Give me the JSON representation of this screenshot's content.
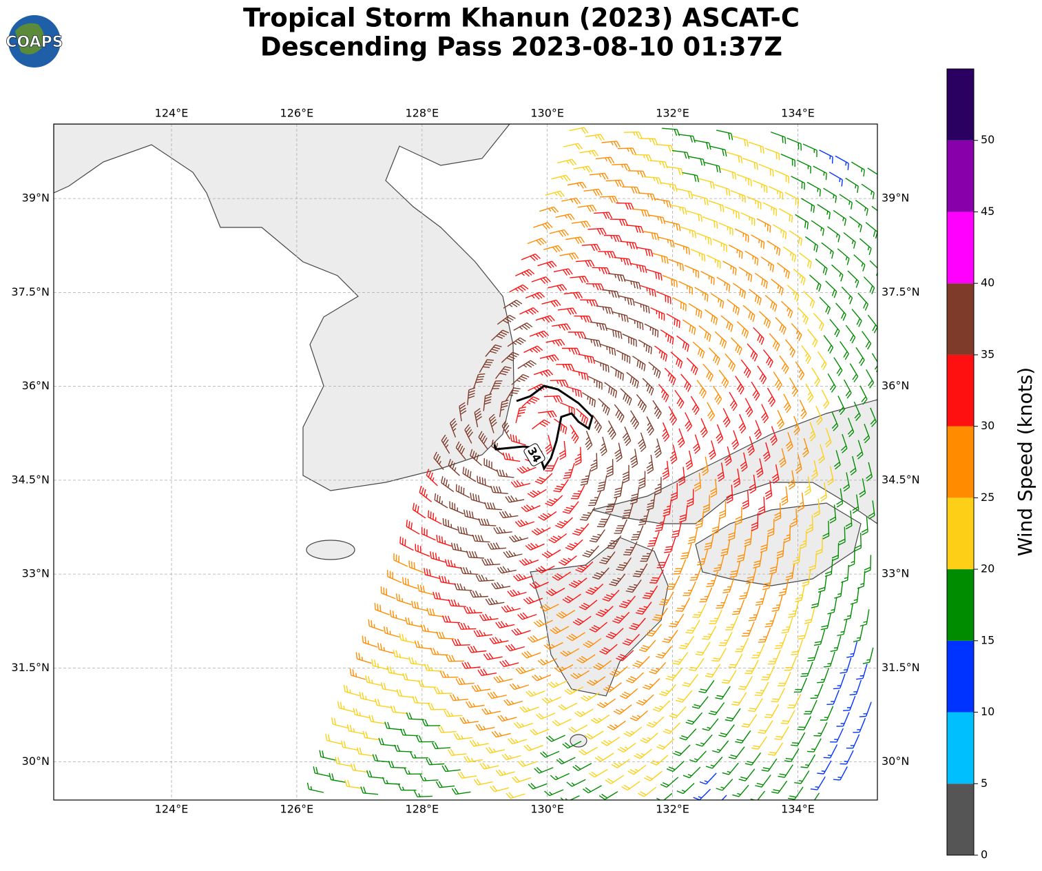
{
  "logo": "COAPS",
  "title": [
    "Tropical Storm Khanun (2023) ASCAT-C",
    "Descending Pass 2023-08-10 01:37Z"
  ],
  "map": {
    "lonlim": [
      122.12,
      135.27
    ],
    "latlim": [
      29.39,
      40.19
    ],
    "lon_ticks": [
      {
        "value": 124,
        "label": "124°E"
      },
      {
        "value": 126,
        "label": "126°E"
      },
      {
        "value": 128,
        "label": "128°E"
      },
      {
        "value": 130,
        "label": "130°E"
      },
      {
        "value": 132,
        "label": "132°E"
      },
      {
        "value": 134,
        "label": "134°E"
      }
    ],
    "lat_ticks": [
      {
        "value": 30,
        "label": "30°N"
      },
      {
        "value": 31.5,
        "label": "31.5°N"
      },
      {
        "value": 33,
        "label": "33°N"
      },
      {
        "value": 34.5,
        "label": "34.5°N"
      },
      {
        "value": 36,
        "label": "36°N"
      },
      {
        "value": 37.5,
        "label": "37.5°N"
      },
      {
        "value": 39,
        "label": "39°N"
      }
    ],
    "grid": true,
    "contour_label": "34"
  },
  "colorbar": {
    "label": "Wind Speed (knots)",
    "lim": [
      0,
      55
    ],
    "ticks": [
      0,
      5,
      10,
      15,
      20,
      25,
      30,
      35,
      40,
      45,
      50
    ],
    "colors": [
      "#555555",
      "#00bfff",
      "#0033ff",
      "#008c00",
      "#fdd017",
      "#ff8c00",
      "#ff1010",
      "#7f3b2a",
      "#ff00ff",
      "#8800aa",
      "#2a0060"
    ]
  }
}
